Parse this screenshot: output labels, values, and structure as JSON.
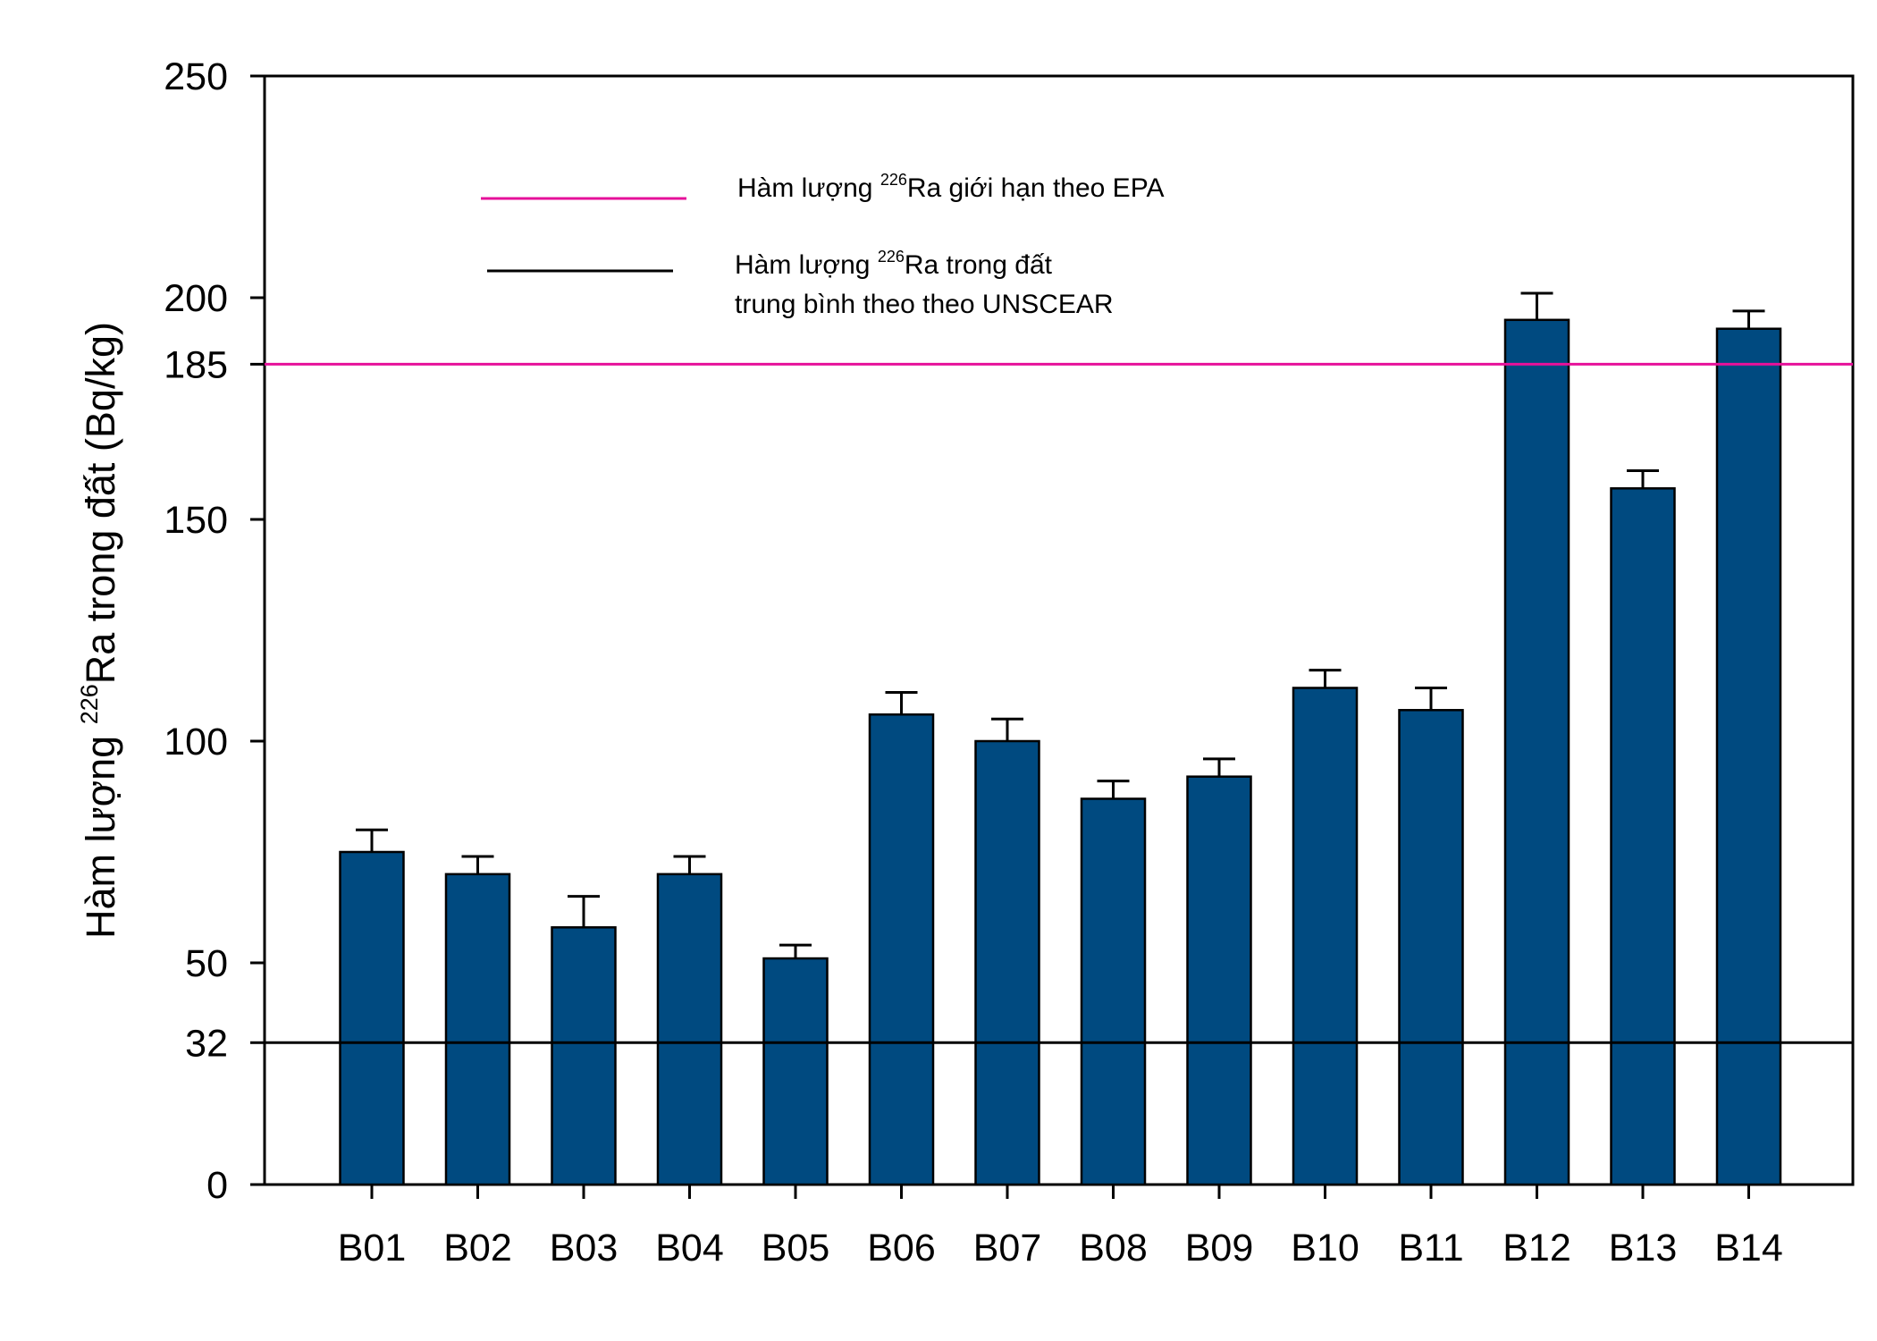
{
  "chart_data": {
    "type": "bar",
    "ylabel": {
      "prefix": "Hàm lượng ",
      "superscript": "226",
      "suffix": "Ra trong đất (Bq/kg)"
    },
    "xlabel": "",
    "categories": [
      "B01",
      "B02",
      "B03",
      "B04",
      "B05",
      "B06",
      "B07",
      "B08",
      "B09",
      "B10",
      "B11",
      "B12",
      "B13",
      "B14"
    ],
    "values": [
      75,
      70,
      58,
      70,
      51,
      106,
      100,
      87,
      92,
      112,
      107,
      195,
      157,
      193
    ],
    "errors": [
      5,
      4,
      7,
      4,
      3,
      5,
      5,
      4,
      4,
      4,
      5,
      6,
      4,
      4
    ],
    "ylim": [
      0,
      250
    ],
    "yticks": [
      0,
      32,
      50,
      100,
      150,
      185,
      200,
      250
    ],
    "bar_color": "#004a80",
    "reference_lines": [
      {
        "value": 185,
        "color": "#e6119a",
        "legend": {
          "lines": [
            {
              "prefix": "Hàm lượng ",
              "superscript": "226",
              "suffix": "Ra giới hạn theo EPA"
            }
          ]
        }
      },
      {
        "value": 32,
        "color": "#000000",
        "legend": {
          "lines": [
            {
              "prefix": "Hàm lượng ",
              "superscript": "226",
              "suffix": "Ra trong đất"
            },
            {
              "prefix": "trung bình theo theo UNSCEAR",
              "superscript": "",
              "suffix": ""
            }
          ]
        }
      }
    ],
    "grid": false,
    "legend_position": "top-left"
  }
}
